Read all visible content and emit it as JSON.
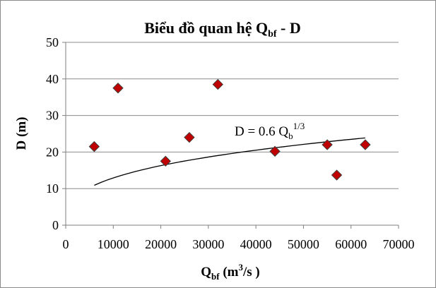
{
  "chart_data": {
    "type": "scatter",
    "title_main": "Biểu đồ quan hệ Q",
    "title_sub": "bf",
    "title_end": " - D",
    "xlabel_main": "Q",
    "xlabel_sub": "bf",
    "xlabel_unit_open": " (m",
    "xlabel_unit_sup": "3",
    "xlabel_unit_close": "/s )",
    "ylabel": "D (m)",
    "xlim": [
      0,
      70000
    ],
    "ylim": [
      0,
      50
    ],
    "xticks": [
      "0",
      "10000",
      "20000",
      "30000",
      "40000",
      "50000",
      "60000",
      "70000"
    ],
    "yticks": [
      "0",
      "10",
      "20",
      "30",
      "40",
      "50"
    ],
    "grid": true,
    "points": [
      {
        "x": 6000,
        "y": 21.5
      },
      {
        "x": 11000,
        "y": 37.5
      },
      {
        "x": 21000,
        "y": 17.5
      },
      {
        "x": 26000,
        "y": 24
      },
      {
        "x": 32000,
        "y": 38.5
      },
      {
        "x": 44000,
        "y": 20.2
      },
      {
        "x": 55000,
        "y": 22
      },
      {
        "x": 57000,
        "y": 13.7
      },
      {
        "x": 63000,
        "y": 22
      }
    ],
    "trend": {
      "coefficient": 0.6,
      "exponent": 0.3333,
      "x_start": 6000,
      "x_end": 63000,
      "label_main": "D = 0.6 Q",
      "label_sub": "b",
      "label_sup": "1/3"
    },
    "colors": {
      "marker": "#c00000",
      "line": "#000000"
    }
  }
}
